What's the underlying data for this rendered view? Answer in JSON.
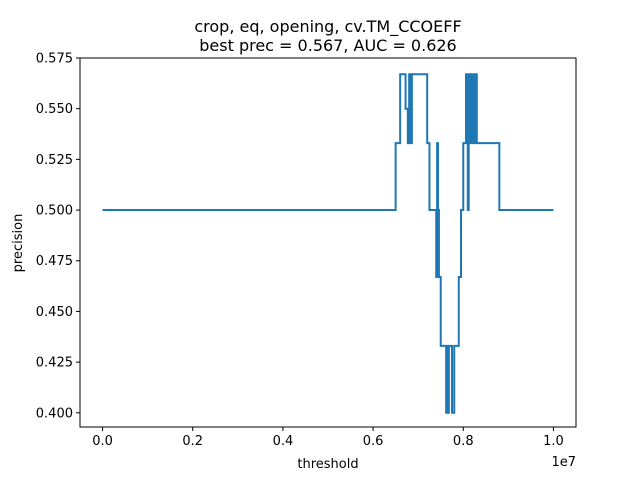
{
  "chart_data": {
    "type": "line",
    "title_line1": "crop, eq, opening, cv.TM_CCOEFF",
    "title_line2": "best prec = 0.567, AUC = 0.626",
    "xlabel": "threshold",
    "ylabel": "precision",
    "x_offset_label": "1e7",
    "xlim": [
      -0.05,
      1.05
    ],
    "ylim": [
      0.393,
      0.575
    ],
    "x_ticks": [
      {
        "value": 0.0,
        "label": "0.0"
      },
      {
        "value": 0.2,
        "label": "0.2"
      },
      {
        "value": 0.4,
        "label": "0.4"
      },
      {
        "value": 0.6,
        "label": "0.6"
      },
      {
        "value": 0.8,
        "label": "0.8"
      },
      {
        "value": 1.0,
        "label": "1.0"
      }
    ],
    "y_ticks": [
      {
        "value": 0.4,
        "label": "0.400"
      },
      {
        "value": 0.425,
        "label": "0.425"
      },
      {
        "value": 0.45,
        "label": "0.450"
      },
      {
        "value": 0.475,
        "label": "0.475"
      },
      {
        "value": 0.5,
        "label": "0.500"
      },
      {
        "value": 0.525,
        "label": "0.525"
      },
      {
        "value": 0.55,
        "label": "0.550"
      },
      {
        "value": 0.575,
        "label": "0.575"
      }
    ],
    "grid": false,
    "series": [
      {
        "color": "#1f77b4",
        "step": "post",
        "x": [
          0.0,
          0.65,
          0.66,
          0.672,
          0.677,
          0.68,
          0.683,
          0.686,
          0.69,
          0.72,
          0.725,
          0.73,
          0.74,
          0.742,
          0.744,
          0.746,
          0.75,
          0.76,
          0.762,
          0.764,
          0.766,
          0.768,
          0.77,
          0.775,
          0.78,
          0.79,
          0.795,
          0.8,
          0.806,
          0.808,
          0.81,
          0.812,
          0.814,
          0.816,
          0.818,
          0.82,
          0.822,
          0.824,
          0.826,
          0.828,
          0.83,
          0.88,
          1.0
        ],
        "y": [
          0.5,
          0.533,
          0.567,
          0.55,
          0.533,
          0.567,
          0.533,
          0.567,
          0.567,
          0.533,
          0.5,
          0.5,
          0.467,
          0.533,
          0.5,
          0.467,
          0.433,
          0.433,
          0.4,
          0.433,
          0.4,
          0.433,
          0.433,
          0.4,
          0.433,
          0.467,
          0.5,
          0.533,
          0.567,
          0.533,
          0.5,
          0.567,
          0.533,
          0.567,
          0.533,
          0.567,
          0.533,
          0.567,
          0.533,
          0.567,
          0.533,
          0.5,
          0.5
        ]
      }
    ]
  }
}
